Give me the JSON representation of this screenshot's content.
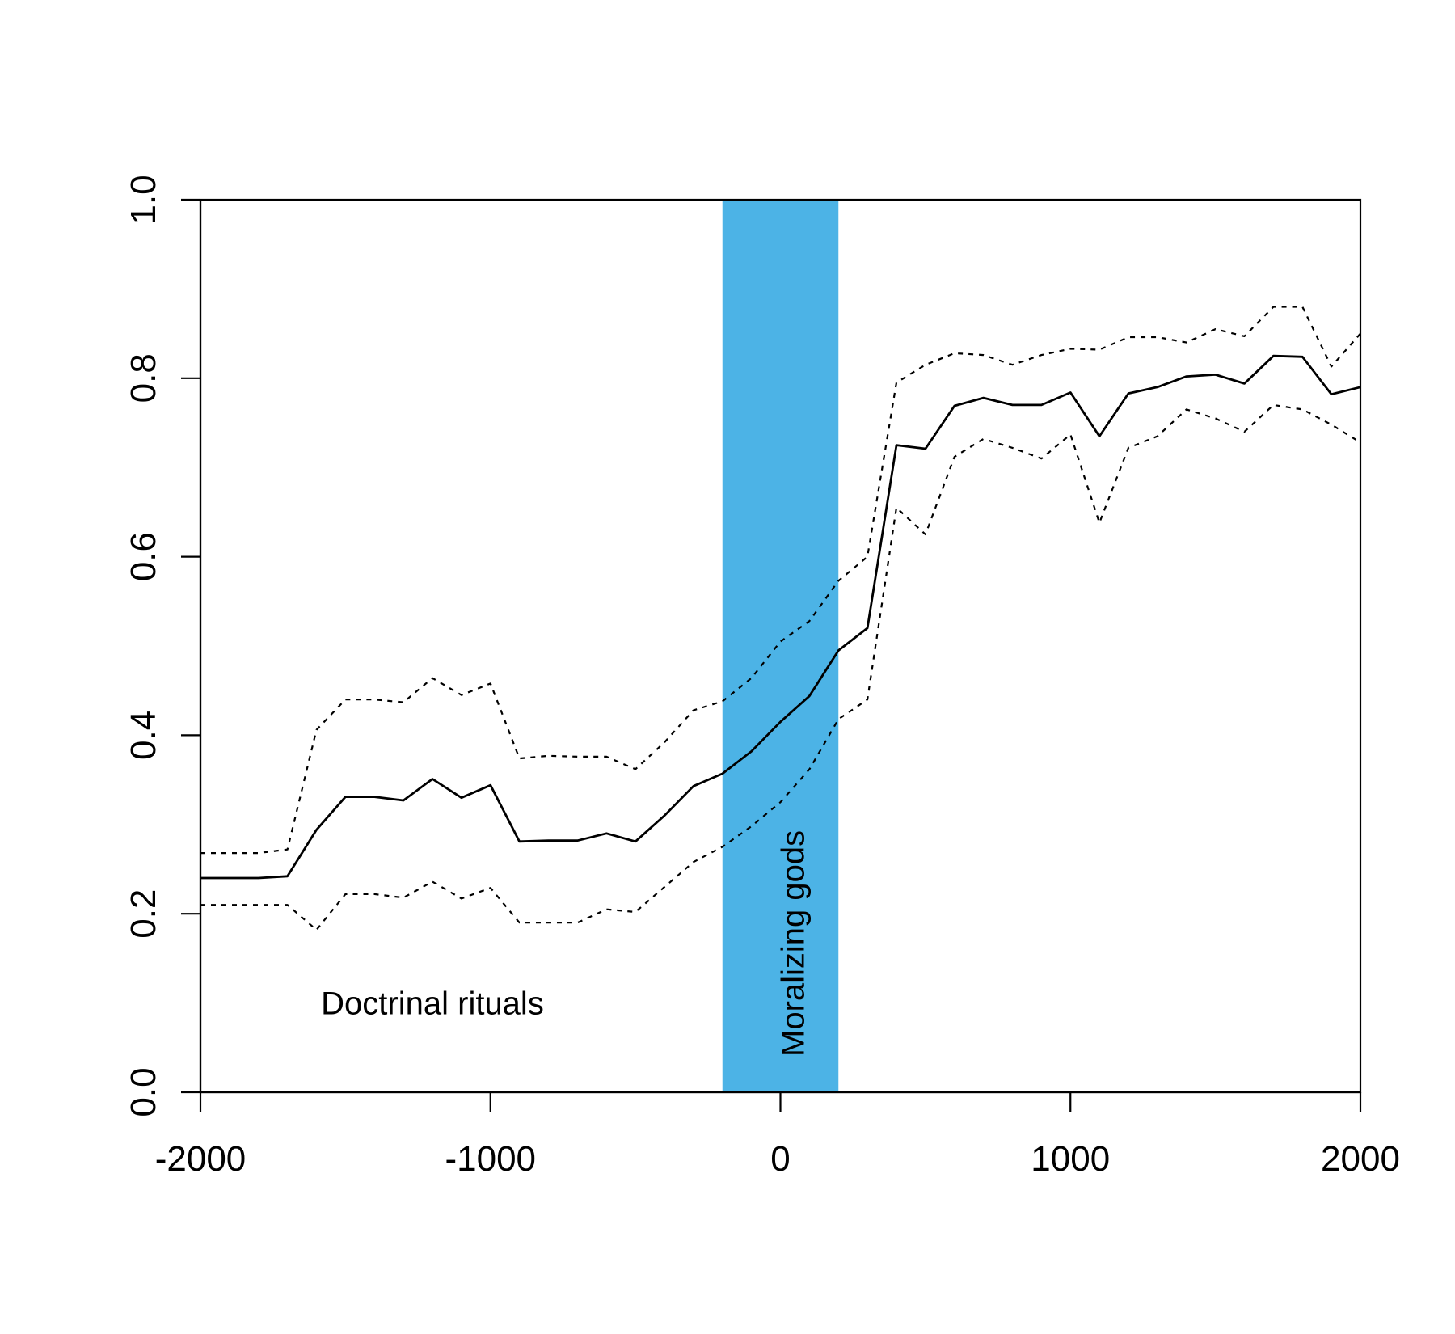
{
  "chart_data": {
    "type": "line",
    "title": "",
    "xlabel": "",
    "ylabel": "",
    "xlim": [
      -2000,
      2000
    ],
    "ylim": [
      0,
      1
    ],
    "x_ticks": [
      -2000,
      -1000,
      0,
      1000,
      2000
    ],
    "x_tick_labels": [
      "-2000",
      "-1000",
      "0",
      "1000",
      "2000"
    ],
    "y_ticks": [
      0,
      0.2,
      0.4,
      0.6,
      0.8,
      1.0
    ],
    "y_tick_labels": [
      "0.0",
      "0.2",
      "0.4",
      "0.6",
      "0.8",
      "1.0"
    ],
    "grid": false,
    "legend": "none",
    "shaded_region": {
      "x_start": -200,
      "x_end": 200,
      "color": "#4CB3E6",
      "label": "Moralizing gods"
    },
    "annotation": {
      "text": "Doctrinal rituals",
      "x": -1200,
      "y": 0.1
    },
    "x": [
      -2000,
      -1900,
      -1800,
      -1700,
      -1600,
      -1500,
      -1400,
      -1300,
      -1200,
      -1100,
      -1000,
      -900,
      -800,
      -700,
      -600,
      -500,
      -400,
      -300,
      -200,
      -100,
      0,
      100,
      200,
      300,
      400,
      500,
      600,
      700,
      800,
      900,
      1000,
      1100,
      1200,
      1300,
      1400,
      1500,
      1600,
      1700,
      1800,
      1900,
      2000
    ],
    "series": [
      {
        "style": "solid",
        "values": [
          0.24,
          0.24,
          0.24,
          0.242,
          0.294,
          0.331,
          0.331,
          0.327,
          0.351,
          0.33,
          0.344,
          0.281,
          0.282,
          0.282,
          0.29,
          0.281,
          0.31,
          0.343,
          0.357,
          0.382,
          0.415,
          0.444,
          0.495,
          0.52,
          0.725,
          0.721,
          0.769,
          0.778,
          0.77,
          0.77,
          0.784,
          0.735,
          0.783,
          0.79,
          0.802,
          0.804,
          0.794,
          0.825,
          0.824,
          0.782,
          0.79
        ]
      },
      {
        "style": "dotted",
        "values": [
          0.268,
          0.268,
          0.268,
          0.272,
          0.406,
          0.44,
          0.44,
          0.437,
          0.464,
          0.445,
          0.458,
          0.374,
          0.377,
          0.376,
          0.376,
          0.362,
          0.392,
          0.428,
          0.438,
          0.464,
          0.505,
          0.528,
          0.573,
          0.6,
          0.795,
          0.815,
          0.828,
          0.826,
          0.815,
          0.826,
          0.833,
          0.832,
          0.846,
          0.846,
          0.84,
          0.855,
          0.847,
          0.88,
          0.88,
          0.813,
          0.85
        ]
      },
      {
        "style": "dotted",
        "values": [
          0.21,
          0.21,
          0.21,
          0.21,
          0.182,
          0.222,
          0.222,
          0.218,
          0.236,
          0.217,
          0.229,
          0.19,
          0.19,
          0.19,
          0.205,
          0.202,
          0.23,
          0.258,
          0.275,
          0.298,
          0.325,
          0.362,
          0.418,
          0.44,
          0.655,
          0.625,
          0.712,
          0.732,
          0.722,
          0.71,
          0.737,
          0.638,
          0.722,
          0.735,
          0.765,
          0.755,
          0.74,
          0.77,
          0.765,
          0.748,
          0.728
        ]
      }
    ]
  }
}
